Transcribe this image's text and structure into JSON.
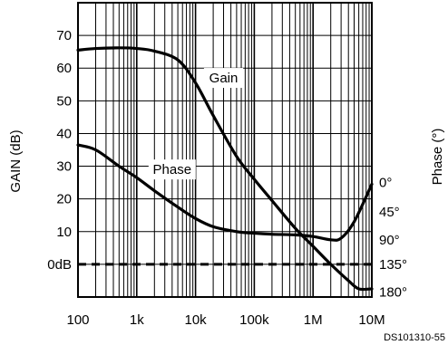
{
  "chart_data": {
    "type": "line",
    "xscale": "log",
    "xlim": [
      100,
      10000000
    ],
    "x_ticks": [
      100,
      1000,
      10000,
      100000,
      1000000,
      10000000
    ],
    "x_ticklabels": [
      "100",
      "1k",
      "10k",
      "100k",
      "1M",
      "10M"
    ],
    "ylabel": "GAIN (dB)",
    "ylim": [
      -10,
      80
    ],
    "y_ticks": [
      0,
      10,
      20,
      30,
      40,
      50,
      60,
      70
    ],
    "y_ticklabels": [
      "0dB",
      "10",
      "20",
      "30",
      "40",
      "50",
      "60",
      "70"
    ],
    "y2label": "Phase (°)",
    "y2_ticks": [
      {
        "label": "0°",
        "gain_equiv": 25
      },
      {
        "label": "45°",
        "gain_equiv": 16
      },
      {
        "label": "90°",
        "gain_equiv": 7.5
      },
      {
        "label": "135°",
        "gain_equiv": 0
      },
      {
        "label": "180°",
        "gain_equiv": -8.5
      }
    ],
    "grid": true,
    "reference_line": {
      "y": 0,
      "style": "dashed"
    },
    "series": [
      {
        "name": "Gain",
        "points": [
          [
            100,
            65.5
          ],
          [
            200,
            66
          ],
          [
            500,
            66.2
          ],
          [
            1000,
            66
          ],
          [
            2000,
            65.2
          ],
          [
            5000,
            62.5
          ],
          [
            10000,
            55.5
          ],
          [
            20000,
            45.5
          ],
          [
            50000,
            33
          ],
          [
            100000,
            26
          ],
          [
            200000,
            19.5
          ],
          [
            500000,
            11
          ],
          [
            1000000,
            5.5
          ],
          [
            2000000,
            0
          ],
          [
            4000000,
            -5
          ],
          [
            6000000,
            -7.5
          ],
          [
            10000000,
            -7.5
          ]
        ],
        "label_at": [
          30000,
          57
        ]
      },
      {
        "name": "Phase",
        "points": [
          [
            100,
            36.5
          ],
          [
            200,
            35
          ],
          [
            500,
            30
          ],
          [
            1000,
            26.5
          ],
          [
            2000,
            22.5
          ],
          [
            5000,
            17.5
          ],
          [
            10000,
            14
          ],
          [
            20000,
            11.5
          ],
          [
            50000,
            10
          ],
          [
            100000,
            9.5
          ],
          [
            200000,
            9.2
          ],
          [
            500000,
            9
          ],
          [
            1000000,
            8.5
          ],
          [
            2000000,
            7.5
          ],
          [
            3000000,
            8
          ],
          [
            5000000,
            13
          ],
          [
            10000000,
            24.5
          ]
        ],
        "label_at": [
          4000,
          29
        ]
      }
    ]
  },
  "doc_id": "DS101310-55"
}
